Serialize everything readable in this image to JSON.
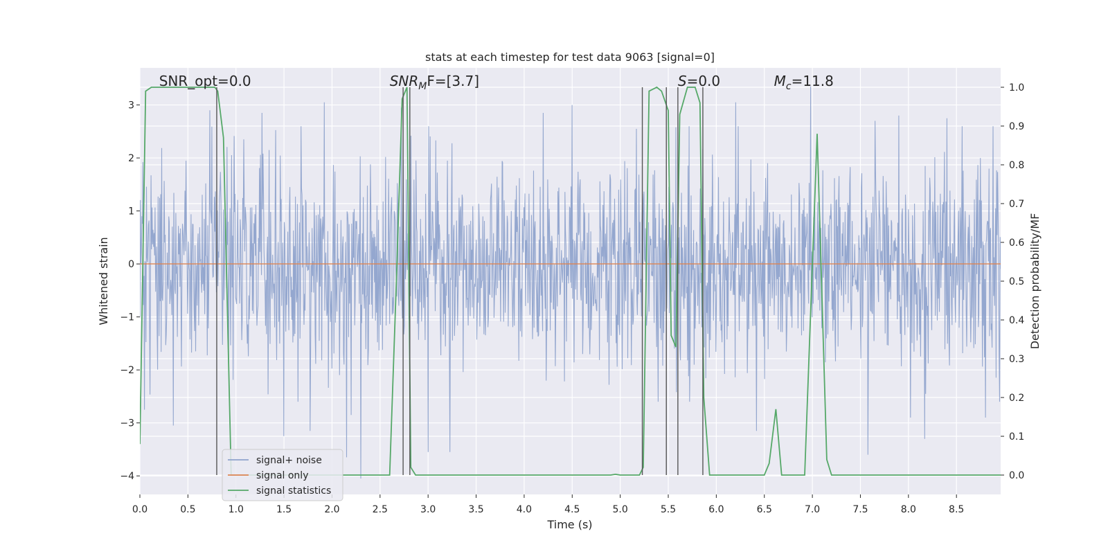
{
  "chart_data": {
    "type": "line",
    "title": "stats at each timestep for test data 9063 [signal=0]",
    "xlabel": "Time (s)",
    "ylabel": "Whitened strain",
    "ylabel_right": "Detection probability/MF",
    "xlim": [
      0.0,
      8.96
    ],
    "ylim": [
      -4.35,
      3.7
    ],
    "ylim_right": [
      -0.05,
      1.05
    ],
    "xticks": [
      0.0,
      0.5,
      1.0,
      1.5,
      2.0,
      2.5,
      3.0,
      3.5,
      4.0,
      4.5,
      5.0,
      5.5,
      6.0,
      6.5,
      7.0,
      7.5,
      8.0,
      8.5
    ],
    "xtick_labels": [
      "0.0",
      "0.5",
      "1.0",
      "1.5",
      "2.0",
      "2.5",
      "3.0",
      "3.5",
      "4.0",
      "4.5",
      "5.0",
      "5.5",
      "6.0",
      "6.5",
      "7.0",
      "7.5",
      "8.0",
      "8.5"
    ],
    "yticks": [
      3,
      2,
      1,
      0,
      -1,
      -2,
      -3,
      -4
    ],
    "ytick_labels": [
      "3",
      "2",
      "1",
      "0",
      "−1",
      "−2",
      "−3",
      "−4"
    ],
    "yticks_right": [
      1.0,
      0.9,
      0.8,
      0.7,
      0.6,
      0.5,
      0.4,
      0.3,
      0.2,
      0.1,
      0.0
    ],
    "ytick_labels_right": [
      "1.0",
      "0.9",
      "0.8",
      "0.7",
      "0.6",
      "0.5",
      "0.4",
      "0.3",
      "0.2",
      "0.1",
      "0.0"
    ],
    "grid": true,
    "legend_position": "lower-left",
    "annotations": [
      {
        "main": "SNR_opt=0.0",
        "sub": "",
        "tail": "",
        "italic": false
      },
      {
        "main": "SNR",
        "sub": "M",
        "tail": "F=[3.7]",
        "italic": true
      },
      {
        "main": "S",
        "sub": "",
        "tail": "=0.0",
        "italic": true
      },
      {
        "main": "M",
        "sub": "c",
        "tail": "=11.8",
        "italic": true
      }
    ],
    "detection_markers_x": [
      0.8,
      2.74,
      2.81,
      5.23,
      5.48,
      5.6,
      5.86
    ],
    "series": [
      {
        "name": "signal+ noise",
        "color": "#8fa3cc",
        "axis": "left",
        "style": "noise",
        "noise_sigma": 1.0,
        "peaks": [
          {
            "x": 0.73,
            "y": 2.9
          },
          {
            "x": 0.35,
            "y": -3.05
          },
          {
            "x": 0.05,
            "y": -2.75
          },
          {
            "x": 1.27,
            "y": 2.85
          },
          {
            "x": 1.5,
            "y": -3.25
          },
          {
            "x": 1.77,
            "y": -3.15
          },
          {
            "x": 1.92,
            "y": 3.05
          },
          {
            "x": 2.15,
            "y": -3.65
          },
          {
            "x": 2.2,
            "y": -2.85
          },
          {
            "x": 2.3,
            "y": -4.05
          },
          {
            "x": 2.72,
            "y": 2.95
          },
          {
            "x": 3.0,
            "y": -3.55
          },
          {
            "x": 3.23,
            "y": -3.55
          },
          {
            "x": 4.2,
            "y": 2.85
          },
          {
            "x": 4.5,
            "y": 3.0
          },
          {
            "x": 5.17,
            "y": 2.55
          },
          {
            "x": 6.2,
            "y": 3.05
          },
          {
            "x": 6.42,
            "y": -3.15
          },
          {
            "x": 6.98,
            "y": 3.35
          },
          {
            "x": 7.9,
            "y": 2.8
          },
          {
            "x": 8.4,
            "y": 2.75
          },
          {
            "x": 8.17,
            "y": -3.3
          },
          {
            "x": 8.02,
            "y": -2.9
          },
          {
            "x": 7.58,
            "y": -3.6
          },
          {
            "x": 8.8,
            "y": -2.9
          },
          {
            "x": 1.08,
            "y": 2.35
          },
          {
            "x": 7.65,
            "y": 2.7
          }
        ]
      },
      {
        "name": "signal only",
        "color": "#dd8452",
        "axis": "left",
        "x": [
          0.0,
          8.96
        ],
        "y": [
          0.0,
          0.0
        ]
      },
      {
        "name": "signal statistics",
        "color": "#55a868",
        "axis": "right",
        "x": [
          0.0,
          0.06,
          0.12,
          0.3,
          0.6,
          0.78,
          0.81,
          0.87,
          0.95,
          1.0,
          1.05,
          2.6,
          2.67,
          2.73,
          2.78,
          2.82,
          2.87,
          2.95,
          4.9,
          4.95,
          5.0,
          5.2,
          5.24,
          5.3,
          5.38,
          5.43,
          5.5,
          5.53,
          5.58,
          5.62,
          5.7,
          5.78,
          5.83,
          5.87,
          5.93,
          6.0,
          6.08,
          6.5,
          6.55,
          6.62,
          6.68,
          6.85,
          6.92,
          7.05,
          7.15,
          7.2,
          8.96
        ],
        "y": [
          0.08,
          0.99,
          1.0,
          1.0,
          1.0,
          1.0,
          0.99,
          0.87,
          0.0,
          0.0,
          0.0,
          0.0,
          0.5,
          0.97,
          1.0,
          0.02,
          0.0,
          0.0,
          0.0,
          0.002,
          0.0,
          0.0,
          0.02,
          0.99,
          1.0,
          0.99,
          0.94,
          0.36,
          0.33,
          0.93,
          1.0,
          1.0,
          0.96,
          0.2,
          0.0,
          0.0,
          0.0,
          0.0,
          0.03,
          0.17,
          0.0,
          0.0,
          0.0,
          0.88,
          0.04,
          0.0,
          0.0
        ]
      }
    ]
  }
}
